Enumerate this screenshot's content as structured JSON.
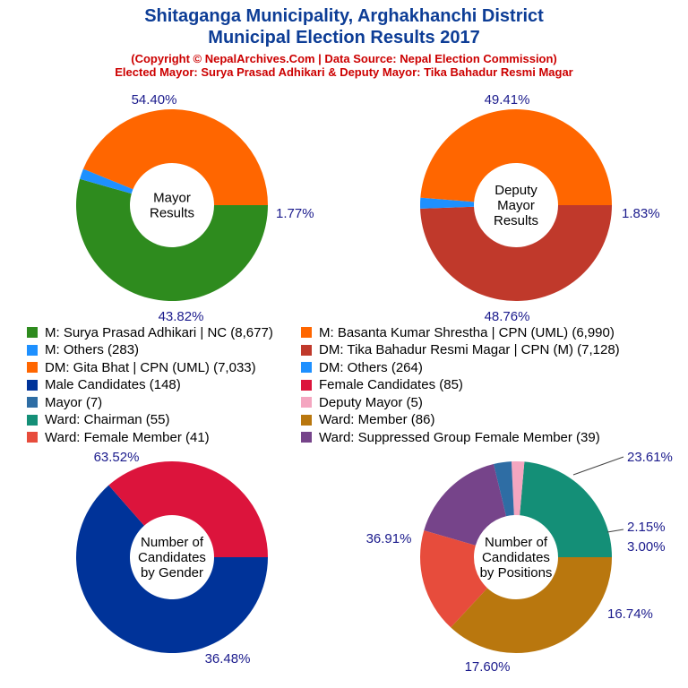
{
  "header": {
    "title_line1": "Shitaganga Municipality, Arghakhanchi District",
    "title_line2": "Municipal Election Results 2017",
    "copyright": "(Copyright © NepalArchives.Com | Data Source: Nepal Election Commission)",
    "elected": "Elected Mayor: Surya Prasad Adhikari & Deputy Mayor: Tika Bahadur Resmi Magar"
  },
  "chart_data": [
    {
      "type": "pie",
      "center_label": [
        "Mayor",
        "Results"
      ],
      "slices": [
        {
          "label": "M: Surya Prasad Adhikari | NC",
          "value": 8677,
          "pct": "54.40%",
          "color": "#2e8b1e"
        },
        {
          "label": "M: Others",
          "value": 283,
          "pct": "1.77%",
          "color": "#1e90ff"
        },
        {
          "label": "M: Basanta Kumar Shrestha | CPN (UML)",
          "value": 6990,
          "pct": "43.82%",
          "color": "#ff6600"
        }
      ]
    },
    {
      "type": "pie",
      "center_label": [
        "Deputy",
        "Mayor",
        "Results"
      ],
      "slices": [
        {
          "label": "DM: Tika Bahadur Resmi Magar | CPN (M)",
          "value": 7128,
          "pct": "49.41%",
          "color": "#c0392b"
        },
        {
          "label": "DM: Others",
          "value": 264,
          "pct": "1.83%",
          "color": "#1e90ff"
        },
        {
          "label": "DM: Gita Bhat | CPN (UML)",
          "value": 7033,
          "pct": "48.76%",
          "color": "#ff6600"
        }
      ]
    },
    {
      "type": "pie",
      "center_label": [
        "Number of",
        "Candidates",
        "by Gender"
      ],
      "slices": [
        {
          "label": "Male Candidates",
          "value": 148,
          "pct": "63.52%",
          "color": "#003399"
        },
        {
          "label": "Female Candidates",
          "value": 85,
          "pct": "36.48%",
          "color": "#dc143c"
        }
      ]
    },
    {
      "type": "pie",
      "center_label": [
        "Number of",
        "Candidates",
        "by Positions"
      ],
      "slices": [
        {
          "label": "Ward: Chairman",
          "value": 55,
          "pct": "23.61%",
          "color": "#148f77"
        },
        {
          "label": "Deputy Mayor",
          "value": 5,
          "pct": "2.15%",
          "color": "#f4a6c0"
        },
        {
          "label": "Mayor",
          "value": 7,
          "pct": "3.00%",
          "color": "#2e6da4"
        },
        {
          "label": "Ward: Suppressed Group Female Member",
          "value": 39,
          "pct": "16.74%",
          "color": "#76448a"
        },
        {
          "label": "Ward: Female Member",
          "value": 41,
          "pct": "17.60%",
          "color": "#e74c3c"
        },
        {
          "label": "Ward: Member",
          "value": 86,
          "pct": "36.91%",
          "color": "#b9770e"
        }
      ]
    }
  ],
  "legend": [
    {
      "label": "M: Surya Prasad Adhikari | NC (8,677)",
      "color": "#2e8b1e"
    },
    {
      "label": "M: Basanta Kumar Shrestha | CPN (UML) (6,990)",
      "color": "#ff6600"
    },
    {
      "label": "M: Others (283)",
      "color": "#1e90ff"
    },
    {
      "label": "DM: Tika Bahadur Resmi Magar | CPN (M) (7,128)",
      "color": "#c0392b"
    },
    {
      "label": "DM: Gita Bhat | CPN (UML) (7,033)",
      "color": "#ff6600"
    },
    {
      "label": "DM: Others (264)",
      "color": "#1e90ff"
    },
    {
      "label": "Male Candidates (148)",
      "color": "#003399"
    },
    {
      "label": "Female Candidates (85)",
      "color": "#dc143c"
    },
    {
      "label": "Mayor (7)",
      "color": "#2e6da4"
    },
    {
      "label": "Deputy Mayor (5)",
      "color": "#f4a6c0"
    },
    {
      "label": "Ward: Chairman (55)",
      "color": "#148f77"
    },
    {
      "label": "Ward: Member (86)",
      "color": "#b9770e"
    },
    {
      "label": "Ward: Female Member (41)",
      "color": "#e74c3c"
    },
    {
      "label": "Ward: Suppressed Group Female Member (39)",
      "color": "#76448a"
    }
  ]
}
